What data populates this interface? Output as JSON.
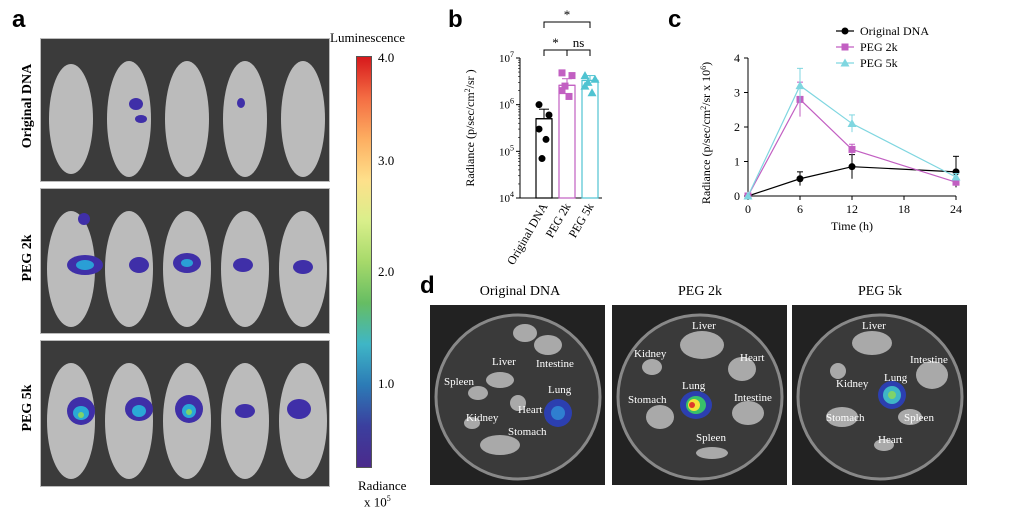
{
  "panels": {
    "a": "a",
    "b": "b",
    "c": "c",
    "d": "d"
  },
  "panel_a": {
    "rows": [
      "Original DNA",
      "PEG 2k",
      "PEG 5k"
    ],
    "colorbar": {
      "title": "Luminescence",
      "ticks": [
        "4.0",
        "3.0",
        "2.0",
        "1.0"
      ],
      "unit_line1": "Radiance",
      "unit_line2": "x 10",
      "unit_exp": "5"
    }
  },
  "panel_d": {
    "titles": [
      "Original DNA",
      "PEG 2k",
      "PEG 5k"
    ],
    "dish1": [
      "Intestine",
      "Liver",
      "Spleen",
      "Lung",
      "Heart",
      "Kidney",
      "Stomach"
    ],
    "dish2": [
      "Liver",
      "Kidney",
      "Heart",
      "Lung",
      "Stomach",
      "Intestine",
      "Spleen"
    ],
    "dish3": [
      "Liver",
      "Intestine",
      "Kidney",
      "Lung",
      "Stomach",
      "Spleen",
      "Heart"
    ]
  },
  "chart_data": [
    {
      "type": "bar",
      "ylabel_main": "Radiance (p/sec/cm",
      "ylabel_tail": "/sr )",
      "scale": "log",
      "ylim_exp": [
        4,
        7
      ],
      "yticks": [
        "10",
        "10",
        "10",
        "10"
      ],
      "ytick_exps": [
        "4",
        "5",
        "6",
        "7"
      ],
      "categories": [
        "Original DNA",
        "PEG 2k",
        "PEG 5k"
      ],
      "colors": [
        "#000000",
        "#c25fc2",
        "#4fc3d1"
      ],
      "means": [
        500000,
        2600000,
        3300000
      ],
      "sem_upper": [
        800000,
        3600000,
        4200000
      ],
      "points": [
        [
          1000000,
          600000,
          300000,
          180000,
          70000
        ],
        [
          2000000,
          4200000,
          4800000,
          1500000,
          2500000
        ],
        [
          2500000,
          3500000,
          4200000,
          1800000,
          3000000
        ]
      ],
      "annotations": [
        "*",
        "*",
        "ns"
      ],
      "colors_markers": [
        "circle",
        "square",
        "triangle"
      ]
    },
    {
      "type": "line",
      "ylabel_main": "Radiance (p/sec/cm",
      "ylabel_mid": "/sr x 10",
      "ylabel_tail": ")",
      "xlabel": "Time (h)",
      "x": [
        0,
        6,
        12,
        24
      ],
      "xticks": [
        "0",
        "6",
        "12",
        "18",
        "24"
      ],
      "yticks": [
        "0",
        "1",
        "2",
        "3",
        "4"
      ],
      "ylim": [
        0,
        4
      ],
      "xlim": [
        0,
        24
      ],
      "series": [
        {
          "name": "Original DNA",
          "color": "#000000",
          "marker": "circle",
          "values": [
            0,
            0.5,
            0.85,
            0.7
          ],
          "err": [
            0,
            0.2,
            0.35,
            0.45
          ]
        },
        {
          "name": "PEG 2k",
          "color": "#c25fc2",
          "marker": "square",
          "values": [
            0,
            2.8,
            1.35,
            0.4
          ],
          "err": [
            0,
            0.5,
            0.15,
            0.1
          ]
        },
        {
          "name": "PEG 5k",
          "color": "#7fd6e0",
          "marker": "triangle",
          "values": [
            0,
            3.2,
            2.1,
            0.55
          ],
          "err": [
            0,
            0.5,
            0.25,
            0.1
          ]
        }
      ]
    }
  ]
}
